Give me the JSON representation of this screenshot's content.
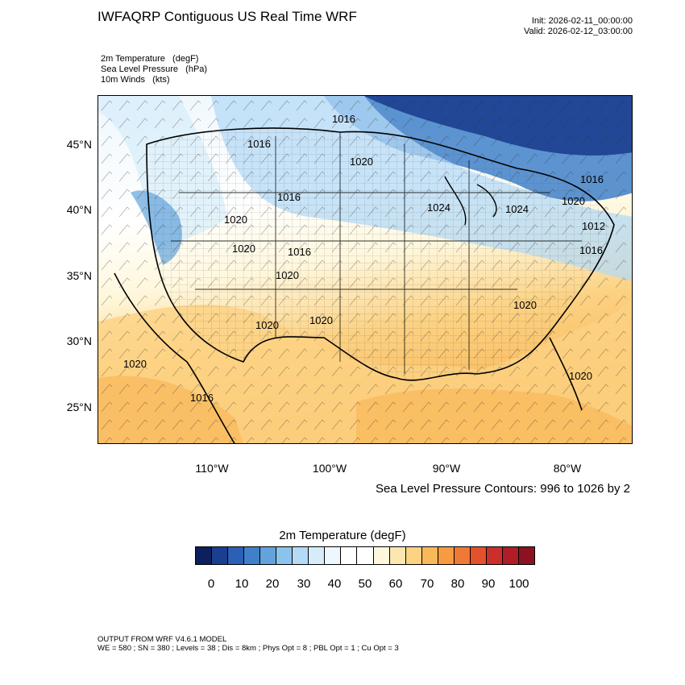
{
  "header": {
    "title": "IWFAQRP Contiguous US Real Time WRF",
    "init": "Init: 2026-02-11_00:00:00",
    "valid": "Valid: 2026-02-12_03:00:00"
  },
  "variables": [
    "2m Temperature   (degF)",
    "Sea Level Pressure   (hPa)",
    "10m Winds   (kts)"
  ],
  "map": {
    "lat_ticks": [
      "45°N",
      "40°N",
      "35°N",
      "30°N",
      "25°N"
    ],
    "lon_ticks": [
      "110°W",
      "100°W",
      "90°W",
      "80°W"
    ],
    "contour_labels": [
      "1016",
      "1016",
      "1020",
      "1016",
      "1020",
      "1024",
      "1024",
      "1020",
      "1016",
      "1020",
      "1016",
      "1020",
      "1012",
      "1016",
      "1020",
      "1020",
      "1020",
      "1020",
      "1016",
      "1020"
    ]
  },
  "slp_note": "Sea Level Pressure Contours: 996 to 1026 by 2",
  "colorbar": {
    "title": "2m Temperature  (degF)",
    "labels": [
      "0",
      "10",
      "20",
      "30",
      "40",
      "50",
      "60",
      "70",
      "80",
      "90",
      "100"
    ],
    "colors": [
      "#0d1f5c",
      "#1b3f8f",
      "#2c5fb6",
      "#3f80c9",
      "#63a3dc",
      "#8cc3ec",
      "#b4daf5",
      "#d6ecfa",
      "#eef7fd",
      "#ffffff",
      "#ffffff",
      "#fff7dc",
      "#fde7b0",
      "#fcd283",
      "#f9b85a",
      "#f69b40",
      "#f07a35",
      "#e4522c",
      "#cc2f2a",
      "#b01d26",
      "#8c1121"
    ]
  },
  "footer": {
    "line1": "OUTPUT FROM WRF V4.6.1 MODEL",
    "line2": "WE = 580 ; SN = 380 ; Levels = 38 ; Dis = 8km ; Phys Opt = 8 ; PBL Opt = 1 ; Cu Opt = 3"
  }
}
